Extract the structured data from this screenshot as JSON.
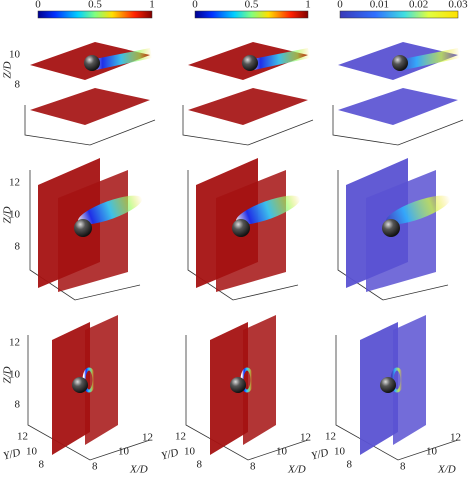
{
  "colorbars": [
    {
      "ticks": [
        "0",
        "0.5",
        "1"
      ]
    },
    {
      "ticks": [
        "0",
        "0.5",
        "1"
      ]
    },
    {
      "ticks": [
        "0",
        "0.01",
        "0.02",
        "0.03"
      ]
    }
  ],
  "rows": [
    {
      "z_label": "Z/D",
      "z_ticks": [
        "8",
        "10"
      ]
    },
    {
      "z_label": "Z/D",
      "z_ticks": [
        "8",
        "10",
        "12"
      ]
    },
    {
      "z_label": "Z/D",
      "z_ticks": [
        "8",
        "10",
        "12"
      ],
      "y_label": "Y/D",
      "y_ticks": [
        "8",
        "10",
        "12"
      ],
      "x_label": "X/D",
      "x_ticks": [
        "8",
        "10",
        "12"
      ]
    }
  ]
}
